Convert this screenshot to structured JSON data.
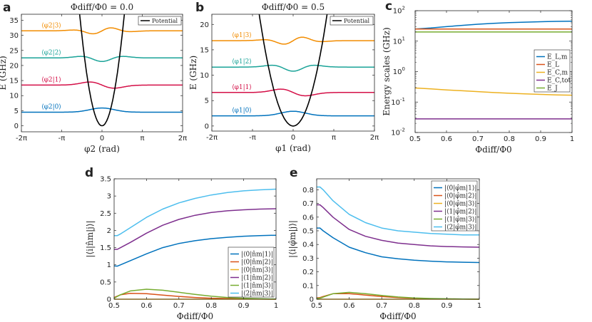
{
  "chart_data": [
    {
      "id": "a",
      "panel_label": "a",
      "type": "line",
      "title": "Φdiff/Φ0 = 0.0",
      "xlabel": "φ2 (rad)",
      "ylabel": "E (GHz)",
      "xlim": [
        -6.2832,
        6.2832
      ],
      "ylim": [
        -2,
        37
      ],
      "xticks": [
        -6.2832,
        -3.1416,
        0,
        3.1416,
        6.2832
      ],
      "xtick_labels": [
        "-2π",
        "-π",
        "0",
        "π",
        "2π"
      ],
      "yticks": [
        0,
        5,
        10,
        15,
        20,
        25,
        30,
        35
      ],
      "legend": [
        "Potential"
      ],
      "legend_position": "top-right",
      "potential": {
        "center": 0,
        "curvature": 12.2
      },
      "levels": [
        {
          "label": "⟨φ2|0⟩",
          "energy": 4.5,
          "nodes": 0,
          "amp": 1.4,
          "color": "#0072BD"
        },
        {
          "label": "⟨φ2|1⟩",
          "energy": 13.5,
          "nodes": 1,
          "amp": 1.4,
          "color": "#D40F47"
        },
        {
          "label": "⟨φ2|2⟩",
          "energy": 22.5,
          "nodes": 2,
          "amp": 1.3,
          "color": "#1AA398"
        },
        {
          "label": "⟨φ2|3⟩",
          "energy": 31.5,
          "nodes": 3,
          "amp": 1.3,
          "color": "#F28C00"
        }
      ]
    },
    {
      "id": "b",
      "panel_label": "b",
      "type": "line",
      "title": "Φdiff/Φ0 = 0.5",
      "xlabel": "φ1 (rad)",
      "ylabel": "E (GHz)",
      "xlim": [
        -6.2832,
        6.2832
      ],
      "ylim": [
        -1,
        22
      ],
      "xticks": [
        -6.2832,
        -3.1416,
        0,
        3.1416,
        6.2832
      ],
      "xtick_labels": [
        "-2π",
        "-π",
        "0",
        "π",
        "2π"
      ],
      "yticks": [
        0,
        5,
        10,
        15,
        20
      ],
      "legend": [
        "Potential"
      ],
      "legend_position": "top-right",
      "potential": {
        "center": 0,
        "curvature": 3.2
      },
      "levels": [
        {
          "label": "⟨φ1|0⟩",
          "energy": 2.0,
          "nodes": 0,
          "amp": 0.9,
          "color": "#0072BD"
        },
        {
          "label": "⟨φ1|1⟩",
          "energy": 6.6,
          "nodes": 1,
          "amp": 0.9,
          "color": "#D40F47"
        },
        {
          "label": "⟨φ1|2⟩",
          "energy": 11.6,
          "nodes": 2,
          "amp": 0.9,
          "color": "#1AA398"
        },
        {
          "label": "⟨φ1|3⟩",
          "energy": 16.8,
          "nodes": 3,
          "amp": 0.9,
          "color": "#F28C00"
        }
      ]
    },
    {
      "id": "c",
      "panel_label": "c",
      "type": "line",
      "yscale": "log",
      "xlabel": "Φdiff/Φ0",
      "ylabel": "Energy scales (GHz)",
      "xlim": [
        0.5,
        1
      ],
      "ylim": [
        0.01,
        100
      ],
      "xticks": [
        0.5,
        0.6,
        0.7,
        0.8,
        0.9,
        1
      ],
      "xtick_labels": [
        "0.5",
        "0.6",
        "0.7",
        "0.8",
        "0.9",
        "1"
      ],
      "ytick_exponents": [
        -2,
        -1,
        0,
        1,
        2
      ],
      "legend_position": "right",
      "x": [
        0.5,
        0.55,
        0.6,
        0.65,
        0.7,
        0.75,
        0.8,
        0.85,
        0.9,
        0.95,
        1.0
      ],
      "series": [
        {
          "name": "E_L,m",
          "color": "#0072BD",
          "values": [
            25,
            27,
            30,
            33,
            36,
            38.5,
            40.5,
            42,
            43.5,
            44.5,
            45
          ]
        },
        {
          "name": "E_L",
          "color": "#D95319",
          "values": [
            25,
            25,
            25,
            25,
            25,
            25,
            25,
            25,
            25,
            25,
            25
          ]
        },
        {
          "name": "E_C,m",
          "color": "#EDB120",
          "values": [
            0.29,
            0.27,
            0.25,
            0.235,
            0.22,
            0.205,
            0.195,
            0.185,
            0.178,
            0.172,
            0.168
          ]
        },
        {
          "name": "E_C,tot",
          "color": "#7E2F8E",
          "values": [
            0.028,
            0.028,
            0.028,
            0.028,
            0.028,
            0.028,
            0.028,
            0.028,
            0.028,
            0.028,
            0.028
          ]
        },
        {
          "name": "E_J",
          "color": "#77AC30",
          "values": [
            20,
            20,
            20,
            20,
            20,
            20,
            20,
            20,
            20,
            20,
            20
          ]
        }
      ]
    },
    {
      "id": "d",
      "panel_label": "d",
      "type": "line",
      "xlabel": "Φdiff/Φ0",
      "ylabel": "|⟨i|n̂m|j⟩|",
      "xlim": [
        0.5,
        1
      ],
      "ylim": [
        0,
        3.5
      ],
      "xticks": [
        0.5,
        0.6,
        0.7,
        0.8,
        0.9,
        1
      ],
      "xtick_labels": [
        "0.5",
        "0.6",
        "0.7",
        "0.8",
        "0.9",
        "1"
      ],
      "yticks": [
        0,
        0.5,
        1,
        1.5,
        2,
        2.5,
        3,
        3.5
      ],
      "legend_position": "bottom-right",
      "x": [
        0.5,
        0.51,
        0.52,
        0.55,
        0.6,
        0.65,
        0.7,
        0.75,
        0.8,
        0.85,
        0.9,
        0.95,
        1.0
      ],
      "series": [
        {
          "name": "|⟨0|n̂m|1⟩|",
          "color": "#0072BD",
          "values": [
            0.97,
            0.96,
            1.0,
            1.12,
            1.32,
            1.5,
            1.62,
            1.7,
            1.76,
            1.8,
            1.83,
            1.85,
            1.86
          ]
        },
        {
          "name": "|⟨0|n̂m|2⟩|",
          "color": "#D95319",
          "values": [
            0.05,
            0.09,
            0.13,
            0.17,
            0.16,
            0.12,
            0.08,
            0.05,
            0.03,
            0.02,
            0.01,
            0.005,
            0.0
          ]
        },
        {
          "name": "|⟨0|n̂m|3⟩|",
          "color": "#EDB120",
          "values": [
            0.0,
            0.0,
            0.0,
            0.0,
            0.0,
            0.0,
            0.0,
            0.0,
            0.0,
            0.0,
            0.0,
            0.0,
            0.0
          ]
        },
        {
          "name": "|⟨1|n̂m|2⟩|",
          "color": "#7E2F8E",
          "values": [
            1.45,
            1.45,
            1.5,
            1.65,
            1.92,
            2.15,
            2.32,
            2.44,
            2.52,
            2.57,
            2.6,
            2.62,
            2.63
          ]
        },
        {
          "name": "|⟨1|n̂m|3⟩|",
          "color": "#77AC30",
          "values": [
            0.03,
            0.08,
            0.13,
            0.24,
            0.29,
            0.26,
            0.2,
            0.14,
            0.09,
            0.05,
            0.03,
            0.015,
            0.005
          ]
        },
        {
          "name": "|⟨2|n̂m|3⟩|",
          "color": "#4DBEEE",
          "values": [
            1.85,
            1.85,
            1.9,
            2.08,
            2.38,
            2.62,
            2.8,
            2.93,
            3.03,
            3.1,
            3.15,
            3.18,
            3.2
          ]
        }
      ]
    },
    {
      "id": "e",
      "panel_label": "e",
      "type": "line",
      "xlabel": "Φdiff/Φ0",
      "ylabel": "|⟨i|φ̂m|j⟩|",
      "xlim": [
        0.5,
        1
      ],
      "ylim": [
        0,
        0.88
      ],
      "xticks": [
        0.5,
        0.6,
        0.7,
        0.8,
        0.9,
        1
      ],
      "xtick_labels": [
        "0.5",
        "0.6",
        "0.7",
        "0.8",
        "0.9",
        "1"
      ],
      "yticks": [
        0,
        0.1,
        0.2,
        0.3,
        0.4,
        0.5,
        0.6,
        0.7,
        0.8
      ],
      "legend_position": "top-right",
      "x": [
        0.5,
        0.51,
        0.52,
        0.55,
        0.6,
        0.65,
        0.7,
        0.75,
        0.8,
        0.85,
        0.9,
        0.95,
        1.0
      ],
      "series": [
        {
          "name": "|⟨0|φ̂m|1⟩|",
          "color": "#0072BD",
          "values": [
            0.52,
            0.52,
            0.5,
            0.45,
            0.38,
            0.34,
            0.31,
            0.295,
            0.285,
            0.278,
            0.273,
            0.27,
            0.268
          ]
        },
        {
          "name": "|⟨0|φ̂m|2⟩|",
          "color": "#D95319",
          "values": [
            0.01,
            0.012,
            0.02,
            0.04,
            0.04,
            0.03,
            0.02,
            0.012,
            0.007,
            0.004,
            0.002,
            0.001,
            0.0
          ]
        },
        {
          "name": "|⟨0|φ̂m|3⟩|",
          "color": "#EDB120",
          "values": [
            0.0,
            0.0,
            0.0,
            0.0,
            0.0,
            0.0,
            0.0,
            0.0,
            0.0,
            0.0,
            0.0,
            0.0,
            0.0
          ]
        },
        {
          "name": "|⟨1|φ̂m|2⟩|",
          "color": "#7E2F8E",
          "values": [
            0.69,
            0.69,
            0.67,
            0.6,
            0.51,
            0.46,
            0.43,
            0.41,
            0.4,
            0.39,
            0.385,
            0.382,
            0.38
          ]
        },
        {
          "name": "|⟨1|φ̂m|3⟩|",
          "color": "#77AC30",
          "values": [
            0.005,
            0.008,
            0.015,
            0.04,
            0.05,
            0.04,
            0.027,
            0.016,
            0.009,
            0.005,
            0.003,
            0.001,
            0.0
          ]
        },
        {
          "name": "|⟨2|φ̂m|3⟩|",
          "color": "#4DBEEE",
          "values": [
            0.82,
            0.82,
            0.8,
            0.72,
            0.62,
            0.56,
            0.52,
            0.5,
            0.49,
            0.48,
            0.475,
            0.47,
            0.47
          ]
        }
      ]
    }
  ]
}
